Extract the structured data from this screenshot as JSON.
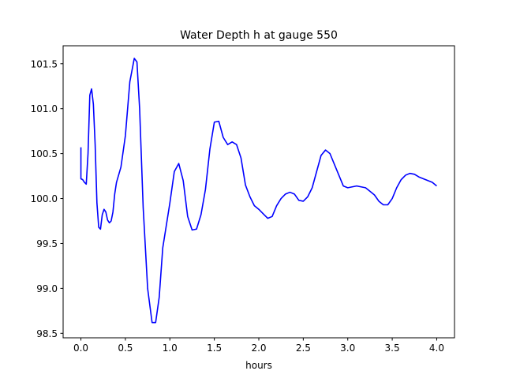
{
  "chart_data": {
    "type": "line",
    "title": "Water Depth h at gauge 550",
    "xlabel": "hours",
    "ylabel": "",
    "xlim": [
      -0.2,
      4.2
    ],
    "ylim": [
      98.45,
      101.7
    ],
    "xticks": [
      0.0,
      0.5,
      1.0,
      1.5,
      2.0,
      2.5,
      3.0,
      3.5,
      4.0
    ],
    "xtick_labels": [
      "0.0",
      "0.5",
      "1.0",
      "1.5",
      "2.0",
      "2.5",
      "3.0",
      "3.5",
      "4.0"
    ],
    "yticks": [
      98.5,
      99.0,
      99.5,
      100.0,
      100.5,
      101.0,
      101.5
    ],
    "ytick_labels": [
      "98.5",
      "99.0",
      "99.5",
      "100.0",
      "100.5",
      "101.0",
      "101.5"
    ],
    "grid": false,
    "series": [
      {
        "color": "#0000ff",
        "x": [
          0.0,
          0.0,
          0.02,
          0.04,
          0.06,
          0.08,
          0.1,
          0.12,
          0.14,
          0.16,
          0.18,
          0.2,
          0.22,
          0.24,
          0.26,
          0.28,
          0.3,
          0.32,
          0.34,
          0.36,
          0.38,
          0.4,
          0.45,
          0.5,
          0.55,
          0.6,
          0.63,
          0.66,
          0.7,
          0.75,
          0.8,
          0.84,
          0.88,
          0.92,
          0.96,
          1.0,
          1.05,
          1.1,
          1.15,
          1.2,
          1.25,
          1.3,
          1.35,
          1.4,
          1.45,
          1.5,
          1.55,
          1.6,
          1.65,
          1.7,
          1.75,
          1.8,
          1.85,
          1.9,
          1.95,
          2.0,
          2.05,
          2.1,
          2.15,
          2.2,
          2.25,
          2.3,
          2.35,
          2.4,
          2.45,
          2.5,
          2.55,
          2.6,
          2.65,
          2.7,
          2.75,
          2.8,
          2.85,
          2.9,
          2.95,
          3.0,
          3.05,
          3.1,
          3.15,
          3.2,
          3.25,
          3.3,
          3.35,
          3.4,
          3.45,
          3.5,
          3.55,
          3.6,
          3.65,
          3.7,
          3.75,
          3.8,
          3.85,
          3.9,
          3.95,
          4.0
        ],
        "y": [
          100.57,
          100.22,
          100.21,
          100.18,
          100.16,
          100.5,
          101.15,
          101.22,
          101.05,
          100.6,
          99.95,
          99.68,
          99.66,
          99.82,
          99.88,
          99.85,
          99.76,
          99.73,
          99.75,
          99.85,
          100.05,
          100.18,
          100.35,
          100.7,
          101.3,
          101.56,
          101.52,
          101.0,
          99.9,
          99.0,
          98.62,
          98.62,
          98.9,
          99.45,
          99.7,
          99.95,
          100.3,
          100.39,
          100.2,
          99.8,
          99.65,
          99.66,
          99.82,
          100.1,
          100.55,
          100.85,
          100.86,
          100.68,
          100.6,
          100.63,
          100.6,
          100.45,
          100.15,
          100.02,
          99.92,
          99.88,
          99.83,
          99.78,
          99.8,
          99.92,
          100.0,
          100.05,
          100.07,
          100.05,
          99.98,
          99.97,
          100.02,
          100.12,
          100.3,
          100.48,
          100.54,
          100.5,
          100.38,
          100.26,
          100.14,
          100.12,
          100.13,
          100.14,
          100.13,
          100.12,
          100.08,
          100.04,
          99.97,
          99.93,
          99.93,
          100.0,
          100.12,
          100.21,
          100.26,
          100.28,
          100.27,
          100.24,
          100.22,
          100.2,
          100.18,
          100.14
        ]
      }
    ]
  }
}
